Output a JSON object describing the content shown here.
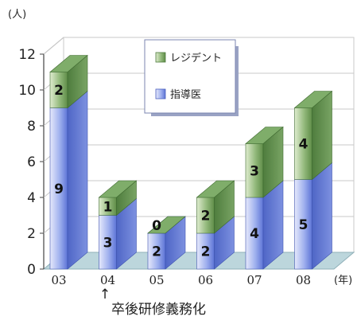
{
  "chart_data": {
    "type": "bar",
    "stacked": true,
    "style": "3d",
    "categories": [
      "03",
      "04",
      "05",
      "06",
      "07",
      "08"
    ],
    "series": [
      {
        "name": "指導医",
        "values": [
          9,
          3,
          2,
          2,
          4,
          5
        ],
        "color": "#5b74d6"
      },
      {
        "name": "レジデント",
        "values": [
          2,
          1,
          0,
          2,
          3,
          4
        ],
        "color": "#6c9c5a"
      }
    ],
    "y_unit": "(人)",
    "x_unit": "(年)",
    "yticks": [
      0,
      2,
      4,
      6,
      8,
      10,
      12
    ],
    "ylim": [
      0,
      12
    ],
    "legend_position": "top-right",
    "annotation": {
      "category": "04",
      "arrow": "↑",
      "text": "卒後研修義務化"
    }
  }
}
